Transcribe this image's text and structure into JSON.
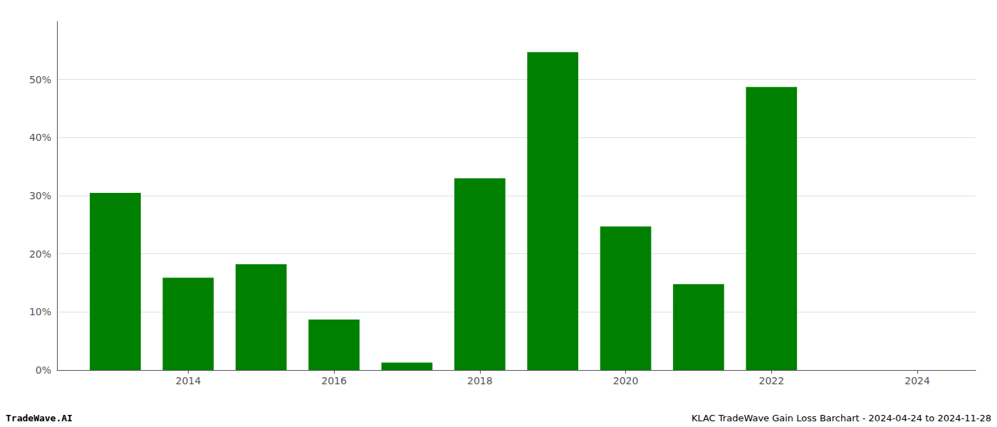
{
  "chart_data": {
    "type": "bar",
    "x": [
      2013,
      2014,
      2015,
      2016,
      2017,
      2018,
      2019,
      2020,
      2021,
      2022,
      2023
    ],
    "values": [
      0.305,
      0.159,
      0.182,
      0.087,
      0.013,
      0.33,
      0.547,
      0.247,
      0.148,
      0.487,
      0.0
    ],
    "color": "#008000",
    "xlim": [
      2012.2,
      2024.8
    ],
    "xticks": [
      2014,
      2016,
      2018,
      2020,
      2022,
      2024
    ],
    "ylim": [
      0,
      0.6
    ],
    "yticks": [
      {
        "value": 0.0,
        "label": "0%"
      },
      {
        "value": 0.1,
        "label": "10%"
      },
      {
        "value": 0.2,
        "label": "20%"
      },
      {
        "value": 0.3,
        "label": "30%"
      },
      {
        "value": 0.4,
        "label": "40%"
      },
      {
        "value": 0.5,
        "label": "50%"
      }
    ],
    "grid": true,
    "annotations": [
      "TradeWave.AI",
      "KLAC TradeWave Gain Loss Barchart - 2024-04-24 to 2024-11-28"
    ]
  }
}
